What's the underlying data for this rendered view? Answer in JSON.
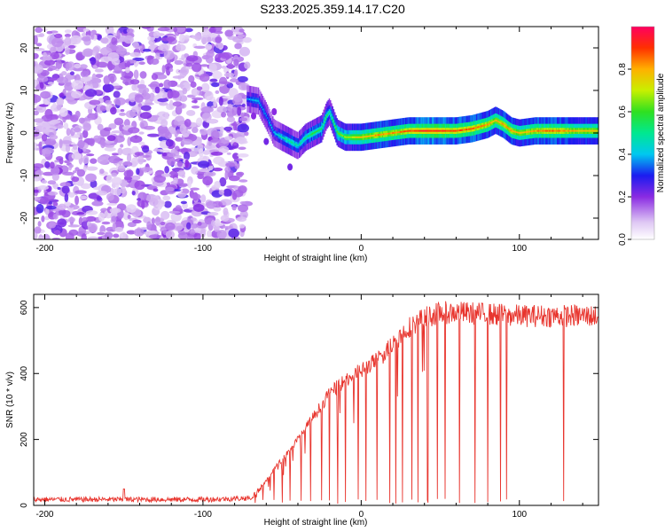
{
  "title": "S233.2025.359.14.17.C20",
  "chart_data": [
    {
      "type": "heatmap",
      "title": "S233.2025.359.14.17.C20",
      "xlabel": "Height of straight line (km)",
      "ylabel": "Frequency (Hz)",
      "xlim": [
        -207,
        150
      ],
      "ylim": [
        -25,
        25
      ],
      "xticks": [
        -200,
        -100,
        0,
        100
      ],
      "yticks": [
        -20,
        -10,
        0,
        10,
        20
      ],
      "noise_region_x": [
        -207,
        -72
      ],
      "ridge_x": [
        -72,
        -65,
        -60,
        -55,
        -50,
        -45,
        -40,
        -35,
        -30,
        -25,
        -22,
        -20,
        -15,
        -10,
        -5,
        0,
        10,
        20,
        30,
        40,
        50,
        60,
        70,
        80,
        85,
        90,
        95,
        100,
        110,
        120,
        130,
        140,
        150
      ],
      "ridge_y": [
        8,
        7.5,
        4,
        0,
        -1,
        -2,
        -3,
        -1,
        0,
        1,
        4,
        5,
        0,
        -1,
        -1,
        -1,
        -0.5,
        0,
        0.5,
        0.5,
        0.5,
        0.5,
        1,
        2,
        3,
        2,
        0.5,
        0,
        0.5,
        0.5,
        0.5,
        0.5,
        0.5
      ],
      "ridge_amplitude": [
        0.3,
        0.35,
        0.3,
        0.35,
        0.4,
        0.45,
        0.4,
        0.45,
        0.5,
        0.5,
        0.5,
        0.45,
        0.55,
        0.6,
        0.65,
        0.7,
        0.75,
        0.75,
        0.8,
        0.85,
        0.85,
        0.8,
        0.8,
        0.75,
        0.7,
        0.75,
        0.75,
        0.7,
        0.75,
        0.8,
        0.75,
        0.7,
        0.7
      ]
    },
    {
      "type": "line",
      "xlabel": "Height of straight line (km)",
      "ylabel": "SNR (10 * v/v)",
      "xlim": [
        -207,
        150
      ],
      "ylim": [
        0,
        640
      ],
      "xticks": [
        -200,
        -100,
        0,
        100
      ],
      "yticks": [
        0,
        200,
        400,
        600
      ],
      "envelope_x": [
        -207,
        -100,
        -70,
        -62,
        -55,
        -50,
        -40,
        -30,
        -20,
        -10,
        0,
        10,
        20,
        30,
        40,
        50,
        60,
        80,
        100,
        120,
        150
      ],
      "envelope_y": [
        18,
        18,
        22,
        60,
        110,
        140,
        200,
        270,
        340,
        380,
        410,
        440,
        490,
        540,
        570,
        585,
        585,
        580,
        575,
        575,
        575
      ],
      "noise_amplitude": 8,
      "dropout_x": [
        -67,
        -62,
        -55,
        -50,
        -45,
        -38,
        -32,
        -25,
        -20,
        -15,
        -10,
        -2,
        3,
        10,
        18,
        22,
        26,
        32,
        36,
        42,
        48,
        53,
        62,
        72,
        80,
        88,
        92,
        128
      ],
      "color": "#e8352e"
    }
  ],
  "colorbar": {
    "label": "Normalized spectral amplitude",
    "ticks": [
      "0.0",
      "0.2",
      "0.4",
      "0.6",
      "0.8"
    ]
  }
}
